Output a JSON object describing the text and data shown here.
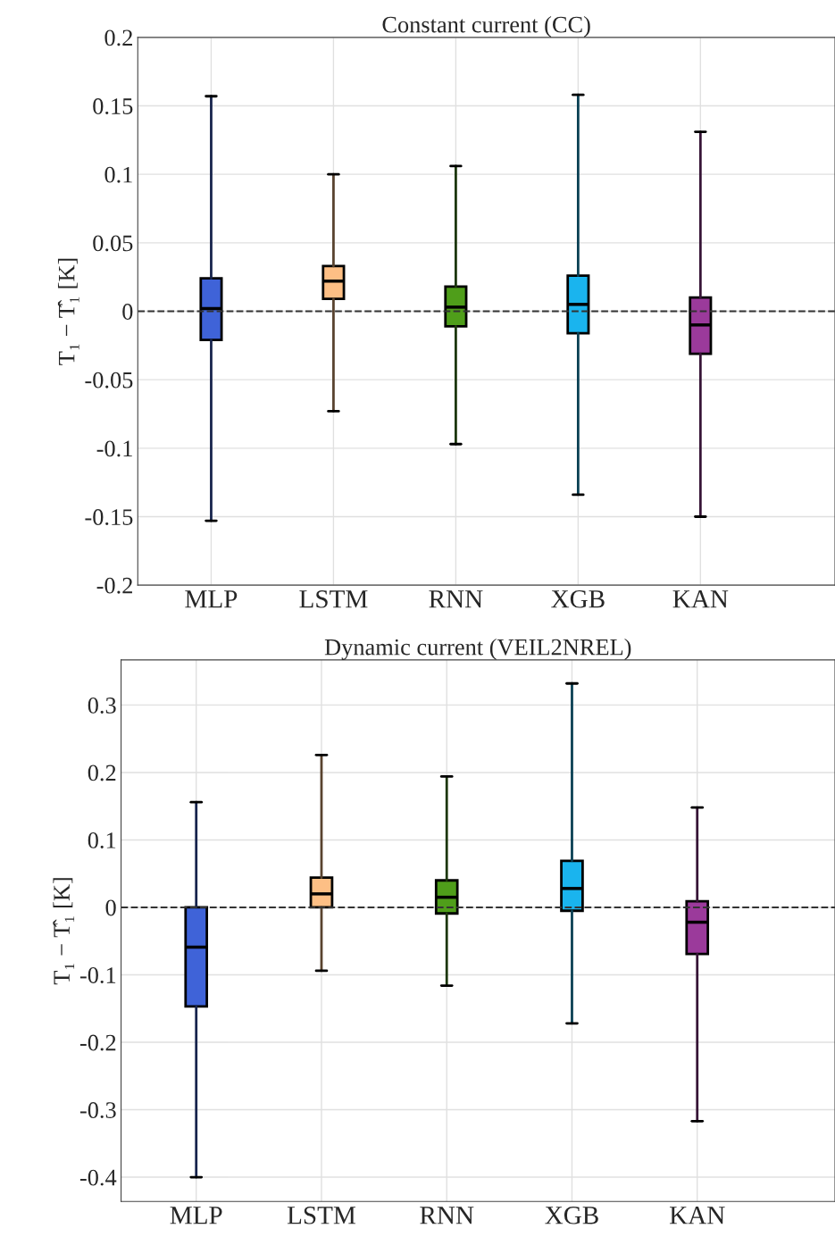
{
  "chart_data": [
    {
      "type": "box",
      "title": "Constant current (CC)",
      "ylabel": "T₁ − T̂₁ [K]",
      "categories": [
        "MLP",
        "LSTM",
        "RNN",
        "XGB",
        "KAN"
      ],
      "colors": [
        "#3f63d8",
        "#fdbf85",
        "#4f9e1a",
        "#1ab4ee",
        "#9b3a9b"
      ],
      "ylim": [
        -0.2,
        0.2
      ],
      "yticks": [
        -0.2,
        -0.15,
        -0.1,
        -0.05,
        0,
        0.05,
        0.1,
        0.15,
        0.2
      ],
      "grid": true,
      "ref_lines": [
        {
          "axis": "y",
          "value": 0,
          "line_style": "dashed",
          "color": "#333333"
        }
      ],
      "boxes": [
        {
          "low": -0.153,
          "q1": -0.021,
          "median": 0.002,
          "q3": 0.024,
          "high": 0.157
        },
        {
          "low": -0.073,
          "q1": 0.009,
          "median": 0.022,
          "q3": 0.033,
          "high": 0.1
        },
        {
          "low": -0.097,
          "q1": -0.011,
          "median": 0.003,
          "q3": 0.018,
          "high": 0.106
        },
        {
          "low": -0.134,
          "q1": -0.016,
          "median": 0.005,
          "q3": 0.026,
          "high": 0.158
        },
        {
          "low": -0.15,
          "q1": -0.031,
          "median": -0.01,
          "q3": 0.01,
          "high": 0.131
        }
      ]
    },
    {
      "type": "box",
      "title": "Dynamic current (VEIL2NREL)",
      "ylabel": "T₁ − T̂₁ [K]",
      "categories": [
        "MLP",
        "LSTM",
        "RNN",
        "XGB",
        "KAN"
      ],
      "colors": [
        "#3f63d8",
        "#fdbf85",
        "#4f9e1a",
        "#1ab4ee",
        "#9b3a9b"
      ],
      "ylim": [
        -0.436,
        0.367
      ],
      "yticks": [
        -0.4,
        -0.3,
        -0.2,
        -0.1,
        0,
        0.1,
        0.2,
        0.3
      ],
      "grid": true,
      "ref_lines": [
        {
          "axis": "y",
          "value": 0,
          "line_style": "dashed",
          "color": "#333333"
        }
      ],
      "boxes": [
        {
          "low": -0.4,
          "q1": -0.147,
          "median": -0.059,
          "q3": 0.0,
          "high": 0.156
        },
        {
          "low": -0.094,
          "q1": 0.0,
          "median": 0.02,
          "q3": 0.044,
          "high": 0.226
        },
        {
          "low": -0.116,
          "q1": -0.009,
          "median": 0.015,
          "q3": 0.04,
          "high": 0.194
        },
        {
          "low": -0.172,
          "q1": -0.005,
          "median": 0.028,
          "q3": 0.069,
          "high": 0.332
        },
        {
          "low": -0.317,
          "q1": -0.069,
          "median": -0.022,
          "q3": 0.009,
          "high": 0.148
        }
      ]
    }
  ]
}
